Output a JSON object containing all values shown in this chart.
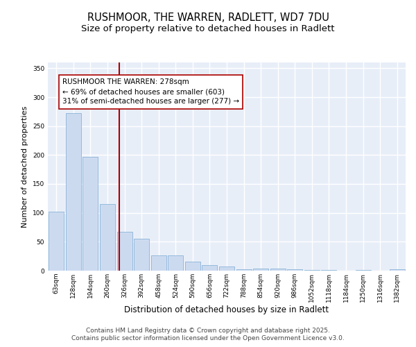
{
  "title_line1": "RUSHMOOR, THE WARREN, RADLETT, WD7 7DU",
  "title_line2": "Size of property relative to detached houses in Radlett",
  "xlabel": "Distribution of detached houses by size in Radlett",
  "ylabel": "Number of detached properties",
  "categories": [
    "63sqm",
    "128sqm",
    "194sqm",
    "260sqm",
    "326sqm",
    "392sqm",
    "458sqm",
    "524sqm",
    "590sqm",
    "656sqm",
    "722sqm",
    "788sqm",
    "854sqm",
    "920sqm",
    "986sqm",
    "1052sqm",
    "1118sqm",
    "1184sqm",
    "1250sqm",
    "1316sqm",
    "1382sqm"
  ],
  "values": [
    102,
    272,
    197,
    115,
    67,
    55,
    26,
    26,
    16,
    10,
    7,
    3,
    4,
    4,
    2,
    1,
    1,
    0,
    1,
    0,
    3
  ],
  "bar_color": "#ccdaf0",
  "bar_edge_color": "#8ab4d8",
  "background_color": "#e8eef8",
  "grid_color": "#ffffff",
  "vline_color": "#aa0000",
  "vline_x_index": 3.68,
  "annotation_text": "RUSHMOOR THE WARREN: 278sqm\n← 69% of detached houses are smaller (603)\n31% of semi-detached houses are larger (277) →",
  "annotation_box_facecolor": "#ffffff",
  "annotation_box_edgecolor": "#aa0000",
  "ylim": [
    0,
    360
  ],
  "yticks": [
    0,
    50,
    100,
    150,
    200,
    250,
    300,
    350
  ],
  "footer": "Contains HM Land Registry data © Crown copyright and database right 2025.\nContains public sector information licensed under the Open Government Licence v3.0.",
  "title_fontsize": 10.5,
  "subtitle_fontsize": 9.5,
  "tick_fontsize": 6.5,
  "xlabel_fontsize": 8.5,
  "ylabel_fontsize": 8,
  "annotation_fontsize": 7.5,
  "footer_fontsize": 6.5
}
